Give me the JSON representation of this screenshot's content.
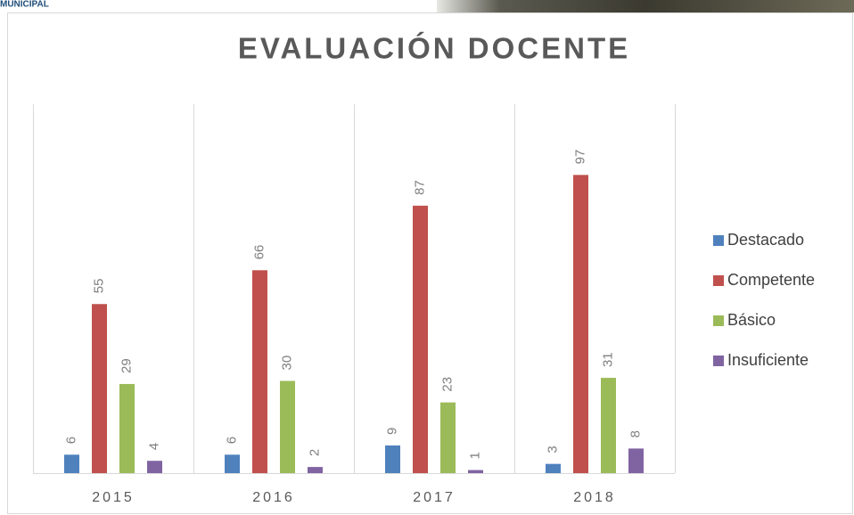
{
  "header": {
    "text": "MUNICIPAL"
  },
  "chart_data": {
    "type": "bar",
    "title": "EVALUACIÓN DOCENTE",
    "categories": [
      "2015",
      "2016",
      "2017",
      "2018"
    ],
    "series": [
      {
        "name": "Destacado",
        "color": "#4f81bd",
        "values": [
          6,
          6,
          9,
          3
        ]
      },
      {
        "name": "Competente",
        "color": "#c0504d",
        "values": [
          55,
          66,
          87,
          97
        ]
      },
      {
        "name": "Básico",
        "color": "#9bbb59",
        "values": [
          29,
          30,
          23,
          31
        ]
      },
      {
        "name": "Insuficiente",
        "color": "#8064a2",
        "values": [
          4,
          2,
          1,
          8
        ]
      }
    ],
    "ylim": [
      0,
      120
    ],
    "legend": "right"
  }
}
